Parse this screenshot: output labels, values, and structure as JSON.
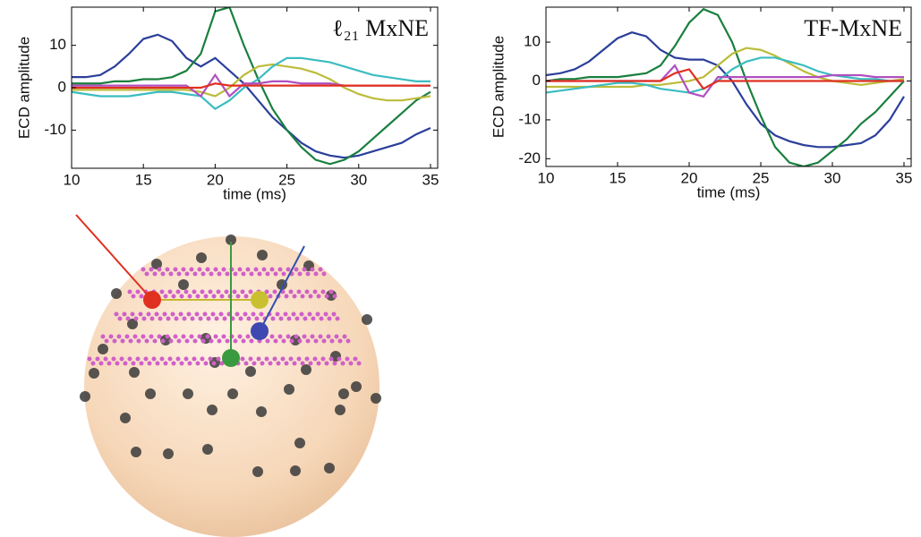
{
  "chart_data": [
    {
      "type": "line",
      "ylabel": "ECD amplitude",
      "xlabel": "time (ms)",
      "annotation": "ℓ₂₁ MxNE",
      "xlim": [
        10,
        35.5
      ],
      "xticks": [
        10,
        15,
        20,
        25,
        30,
        35
      ],
      "ylim": [
        -19,
        19
      ],
      "yticks": [
        -10,
        0,
        10
      ],
      "x": [
        10,
        11,
        12,
        13,
        14,
        15,
        16,
        17,
        18,
        19,
        20,
        21,
        22,
        23,
        24,
        25,
        26,
        27,
        28,
        29,
        30,
        31,
        32,
        33,
        34,
        35
      ],
      "series": [
        {
          "color": "#2b3f9a",
          "values": [
            2.5,
            2.5,
            3,
            5,
            8,
            11.5,
            12.5,
            11,
            7,
            5,
            7,
            4,
            1,
            -3,
            -7,
            -10,
            -13,
            -15,
            -16,
            -16.5,
            -16,
            -15,
            -14,
            -13,
            -11,
            -9.5
          ]
        },
        {
          "color": "#1a7f3e",
          "values": [
            1,
            1,
            1,
            1.5,
            1.5,
            2,
            2,
            2.5,
            4,
            8,
            18,
            19,
            10,
            2,
            -5,
            -10,
            -14,
            -17,
            -18,
            -17,
            -15,
            -12,
            -9,
            -6,
            -3,
            -1
          ]
        },
        {
          "color": "#bcbc3a",
          "values": [
            -0.5,
            -0.5,
            -0.5,
            -0.5,
            -0.5,
            -0.5,
            -0.5,
            -0.5,
            -0.5,
            -1,
            -2,
            0,
            3,
            5,
            5.5,
            5,
            4.5,
            3.5,
            2,
            0,
            -1.5,
            -2.5,
            -3,
            -3,
            -2.5,
            -2
          ]
        },
        {
          "color": "#3bbcc0",
          "values": [
            -1,
            -1.5,
            -2,
            -2,
            -2,
            -1.5,
            -1,
            -1,
            -1.5,
            -2,
            -5,
            -3,
            0,
            2,
            5,
            7,
            7,
            6.5,
            6,
            5,
            4,
            3,
            2.5,
            2,
            1.5,
            1.5
          ]
        },
        {
          "color": "#b050c0",
          "values": [
            0.5,
            0.5,
            0.5,
            0.5,
            0.5,
            0.5,
            0.5,
            0.5,
            0.5,
            -2,
            3,
            -2,
            1,
            1,
            1.5,
            1.5,
            1,
            1,
            1,
            0.5,
            0.5,
            0.5,
            0.5,
            0.5,
            0.5,
            0.5
          ]
        },
        {
          "color": "#e03020",
          "values": [
            0,
            0,
            0,
            0,
            0,
            0,
            0,
            0,
            0,
            0,
            1,
            0.5,
            0.5,
            0.5,
            0.5,
            0.5,
            0.5,
            0.5,
            0.5,
            0.5,
            0.5,
            0.5,
            0.5,
            0.5,
            0.5,
            0.5
          ]
        }
      ]
    },
    {
      "type": "line",
      "ylabel": "ECD amplitude",
      "xlabel": "time (ms)",
      "annotation": "TF-MxNE",
      "xlim": [
        10,
        35.5
      ],
      "xticks": [
        10,
        15,
        20,
        25,
        30,
        35
      ],
      "ylim": [
        -22,
        19
      ],
      "yticks": [
        -20,
        -10,
        0,
        10
      ],
      "x": [
        10,
        11,
        12,
        13,
        14,
        15,
        16,
        17,
        18,
        19,
        20,
        21,
        22,
        23,
        24,
        25,
        26,
        27,
        28,
        29,
        30,
        31,
        32,
        33,
        34,
        35
      ],
      "series": [
        {
          "color": "#2b3f9a",
          "values": [
            1.5,
            2,
            3,
            5,
            8,
            11,
            12.5,
            11.5,
            8,
            6,
            5.5,
            5.5,
            4,
            0,
            -6,
            -11,
            -14,
            -15.5,
            -16.5,
            -17,
            -17,
            -16.5,
            -16,
            -14,
            -10,
            -4
          ]
        },
        {
          "color": "#1a7f3e",
          "values": [
            0,
            0.5,
            0.5,
            1,
            1,
            1,
            1.5,
            2,
            4,
            9,
            15,
            18.5,
            17,
            10,
            0,
            -9,
            -17,
            -21,
            -22,
            -21,
            -18,
            -15,
            -11,
            -8,
            -4,
            0
          ]
        },
        {
          "color": "#bcbc3a",
          "values": [
            -1.5,
            -1.5,
            -1.5,
            -1.5,
            -1.5,
            -1.5,
            -1.5,
            -1,
            -1,
            -0.5,
            0,
            1,
            4,
            7,
            8.5,
            8,
            6.5,
            4.5,
            2.5,
            1,
            0,
            -0.5,
            -1,
            -0.5,
            0,
            0.5
          ]
        },
        {
          "color": "#3bbcc0",
          "values": [
            -3,
            -2.5,
            -2,
            -1.5,
            -1,
            -0.5,
            -0.5,
            -1,
            -2,
            -2.5,
            -3,
            -2,
            0,
            3,
            5,
            6,
            6,
            5,
            4,
            2.5,
            1.5,
            1,
            0.5,
            0.5,
            0,
            0
          ]
        },
        {
          "color": "#b050c0",
          "values": [
            0,
            0,
            0,
            0,
            0,
            0,
            0,
            0,
            0,
            4,
            -3,
            -4,
            1,
            1,
            1,
            1,
            1,
            1,
            1,
            1,
            1.5,
            1.5,
            1.5,
            1,
            1,
            1
          ]
        },
        {
          "color": "#e03020",
          "values": [
            0,
            0,
            0,
            0,
            0,
            0,
            0,
            0,
            0,
            2,
            3,
            -2,
            0,
            0,
            0,
            0,
            0,
            0,
            0,
            0,
            0,
            0,
            0,
            0,
            0,
            0
          ]
        }
      ]
    }
  ]
}
